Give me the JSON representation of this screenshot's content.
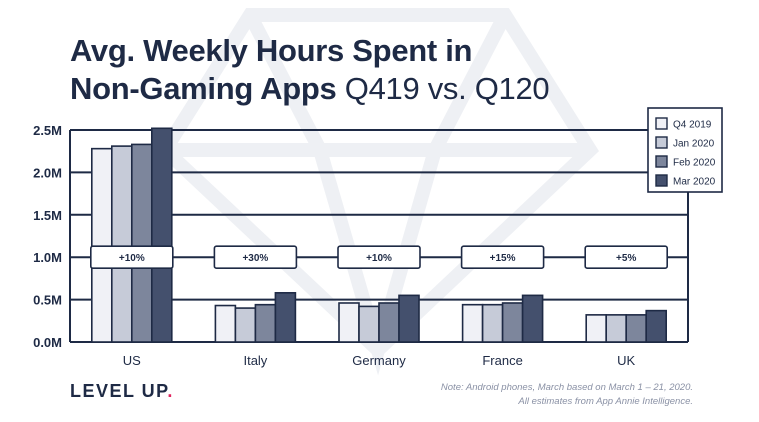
{
  "title": {
    "line1": "Avg. Weekly Hours Spent in",
    "line2_bold": "Non-Gaming Apps",
    "line2_light": " Q419 vs. Q120"
  },
  "chart_data": {
    "type": "bar",
    "title": "Avg. Weekly Hours Spent in Non-Gaming Apps Q419 vs. Q120",
    "xlabel": "",
    "ylabel": "",
    "ylim": [
      0,
      2500000
    ],
    "yticks": [
      "0.0M",
      "0.5M",
      "1.0M",
      "1.5M",
      "2.0M",
      "2.5M"
    ],
    "categories": [
      "US",
      "Italy",
      "Germany",
      "France",
      "UK"
    ],
    "series": [
      {
        "name": "Q4 2019",
        "color": "#f0f1f6",
        "values": [
          2280000,
          430000,
          460000,
          440000,
          320000
        ]
      },
      {
        "name": "Jan 2020",
        "color": "#c6cbd8",
        "values": [
          2310000,
          400000,
          420000,
          440000,
          320000
        ]
      },
      {
        "name": "Feb 2020",
        "color": "#7d869c",
        "values": [
          2330000,
          440000,
          460000,
          460000,
          320000
        ]
      },
      {
        "name": "Mar 2020",
        "color": "#44506d",
        "values": [
          2520000,
          580000,
          550000,
          550000,
          370000
        ]
      }
    ],
    "annotations": [
      "+10%",
      "+30%",
      "+10%",
      "+15%",
      "+5%"
    ],
    "legend": "top-right"
  },
  "colors": {
    "navy": "#1e2a45",
    "accent": "#e0245e"
  },
  "brand": {
    "name": "LEVEL UP",
    "dot": "."
  },
  "note": {
    "line1": "Note: Android phones, March based on March 1 – 21, 2020.",
    "line2": "All estimates from App Annie Intelligence."
  }
}
